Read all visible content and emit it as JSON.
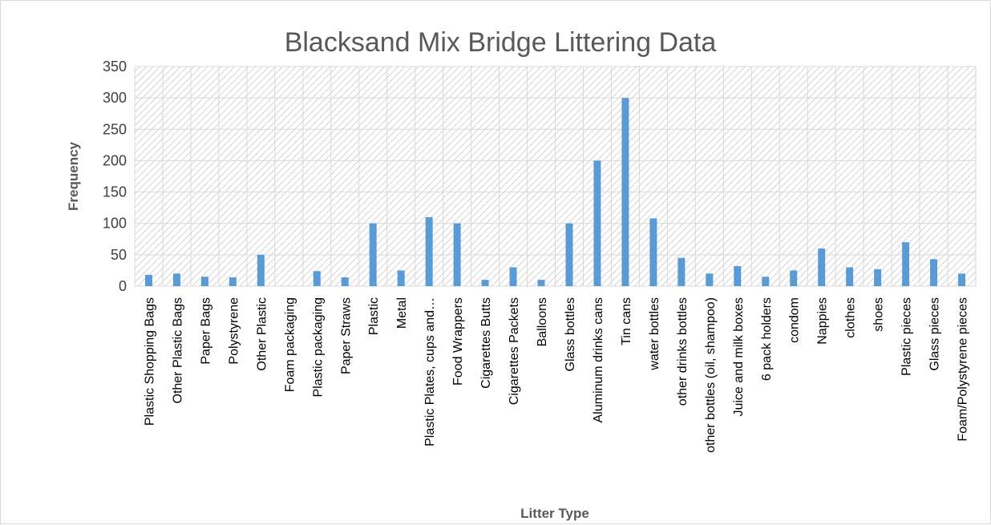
{
  "chart_data": {
    "type": "bar",
    "title": "Blacksand Mix Bridge Littering Data",
    "xlabel": "Litter Type",
    "ylabel": "Frequency",
    "ylim": [
      0,
      350
    ],
    "yticks": [
      0,
      50,
      100,
      150,
      200,
      250,
      300,
      350
    ],
    "grid": true,
    "bar_color": "#5b9bd5",
    "categories": [
      "Plastic Shopping Bags",
      "Other Plastic Bags",
      "Paper Bags",
      "Polystyrene",
      "Other Plastic",
      "Foam packaging",
      "Plastic packaging",
      "Paper Straws",
      "Plastic",
      "Metal",
      "Plastic Plates, cups and…",
      "Food Wrappers",
      "Cigarettes Butts",
      "Cigarettes Packets",
      "Balloons",
      "Glass bottles",
      "Aluminum drinks cans",
      "Tin cans",
      "water bottles",
      "other drinks bottles",
      "other bottles (oil, shampoo)",
      "Juice and milk boxes",
      "6 pack holders",
      "condom",
      "Nappies",
      "clothes",
      "shoes",
      "Plastic pieces",
      "Glass pieces",
      "Foam/Polystyrene pieces"
    ],
    "values": [
      18,
      20,
      15,
      14,
      50,
      0,
      24,
      14,
      100,
      25,
      110,
      100,
      10,
      30,
      10,
      100,
      200,
      300,
      108,
      45,
      20,
      32,
      15,
      25,
      60,
      30,
      27,
      70,
      43,
      20
    ]
  }
}
